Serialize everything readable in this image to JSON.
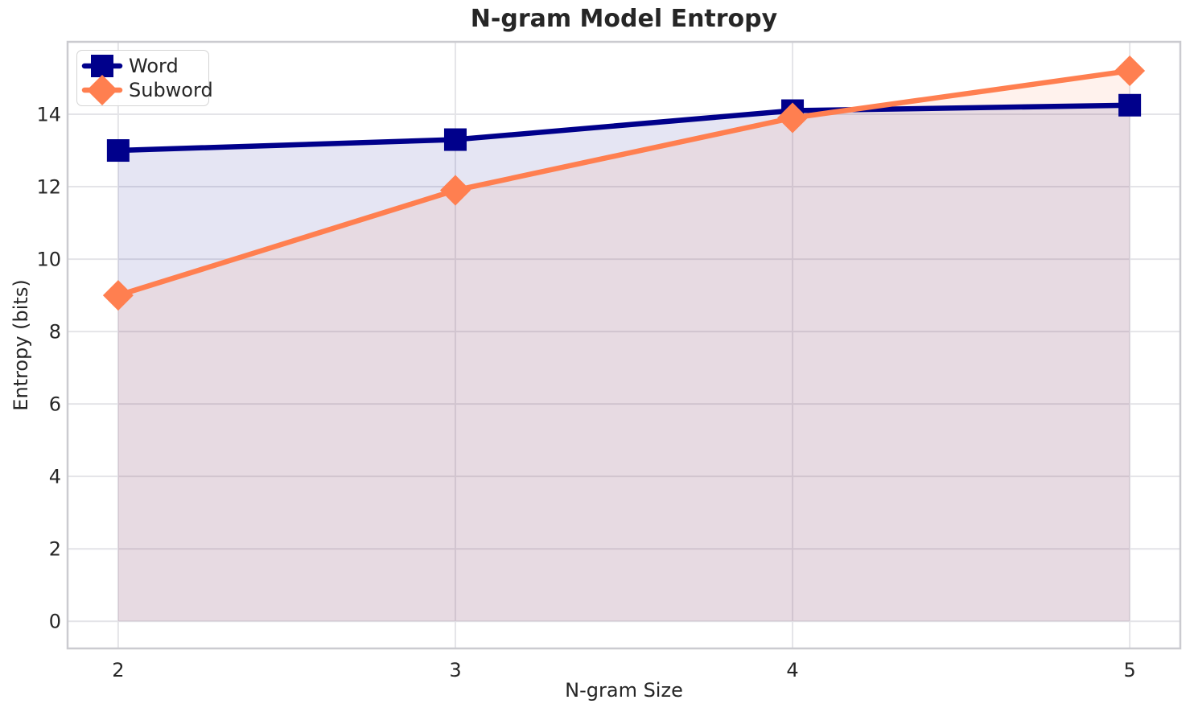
{
  "chart_data": {
    "type": "line",
    "title": "N-gram Model Entropy",
    "xlabel": "N-gram Size",
    "ylabel": "Entropy (bits)",
    "x": [
      2,
      3,
      4,
      5
    ],
    "series": [
      {
        "name": "Word",
        "marker": "square",
        "color": "#00008B",
        "values": [
          13.0,
          13.3,
          14.1,
          14.25
        ]
      },
      {
        "name": "Subword",
        "marker": "diamond",
        "color": "#FF7F50",
        "values": [
          9.0,
          11.9,
          13.9,
          15.2
        ]
      }
    ],
    "area_fill": true,
    "fill_alpha": 0.1,
    "fill_baseline": 0,
    "xticks": [
      2,
      3,
      4,
      5
    ],
    "yticks": [
      0,
      2,
      4,
      6,
      8,
      10,
      12,
      14
    ],
    "xlim": [
      1.85,
      5.15
    ],
    "ylim": [
      -0.75,
      16.0
    ],
    "grid": true,
    "legend_position": "upper left",
    "colors": {
      "grid": "#E4E4E8",
      "spine": "#CBCBD0",
      "text": "#262626",
      "background": "#FFFFFF"
    }
  }
}
